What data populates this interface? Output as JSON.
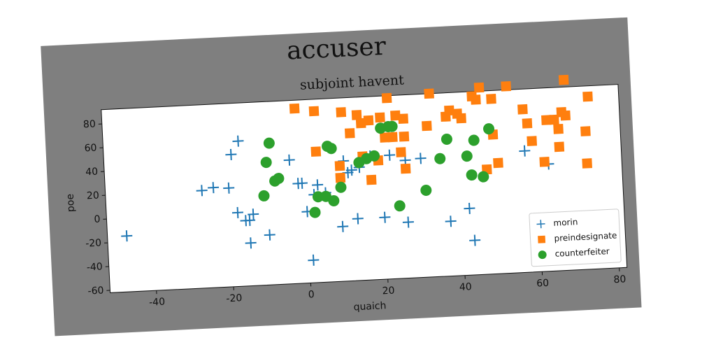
{
  "chart_data": {
    "type": "scatter",
    "title": "accuser",
    "subtitle": "subjoint havent",
    "x_label": "quaich",
    "y_label": "poe",
    "xlim": [
      -52,
      82
    ],
    "ylim": [
      -62,
      92
    ],
    "xticks": [
      -40,
      -20,
      0,
      20,
      40,
      60,
      80
    ],
    "yticks": [
      -60,
      -40,
      -20,
      0,
      20,
      40,
      60,
      80
    ],
    "legend": "lower right",
    "series": [
      {
        "name": "morin",
        "color": "#1f77b4",
        "marker": "plus",
        "x": [
          -47,
          -27,
          -24,
          -20,
          -19,
          -17,
          -18,
          -16,
          -15,
          -14,
          -15,
          -10,
          -4,
          -2,
          -1,
          0,
          1,
          2,
          3,
          5,
          9,
          10,
          11,
          12,
          13,
          14,
          17,
          20,
          22,
          26,
          26,
          30,
          37,
          42,
          43,
          57,
          63
        ],
        "values": [
          -15,
          20,
          22,
          21,
          49,
          60,
          0,
          -7,
          -7,
          -2,
          -26,
          -20,
          42,
          22,
          22,
          -2,
          -43,
          12,
          20,
          13,
          -16,
          39,
          29,
          31,
          -10,
          33,
          42,
          -10,
          42,
          37,
          -15,
          38,
          -16,
          -6,
          -33,
          40,
          28
        ]
      },
      {
        "name": "preindesignate",
        "color": "#ff7f0e",
        "marker": "square",
        "x": [
          -2,
          3,
          10,
          12,
          14,
          15,
          17,
          20,
          22,
          24,
          23,
          26,
          26,
          32,
          33,
          37,
          38,
          40,
          41,
          44,
          45,
          46,
          49,
          53,
          57,
          58,
          59,
          62,
          63,
          65,
          66,
          66,
          67,
          68,
          68,
          74,
          73,
          73,
          49,
          50,
          47,
          26,
          25,
          19,
          17,
          15,
          9,
          9,
          3,
          21
        ],
        "values": [
          85,
          82,
          80,
          62,
          77,
          70,
          72,
          74,
          90,
          75,
          57,
          57,
          72,
          65,
          92,
          72,
          77,
          74,
          70,
          88,
          85,
          95,
          85,
          95,
          75,
          63,
          48,
          30,
          65,
          65,
          57,
          42,
          71,
          68,
          98,
          83,
          54,
          27,
          55,
          31,
          26,
          30,
          44,
          38,
          22,
          42,
          35,
          25,
          48,
          57
        ]
      },
      {
        "name": "counterfeiter",
        "color": "#2ca02c",
        "marker": "circle",
        "x": [
          -9,
          -10,
          -8,
          -7,
          -11,
          2,
          3,
          5,
          7,
          9,
          6,
          7,
          14,
          16,
          18,
          20,
          22,
          23,
          24,
          31,
          35,
          37,
          42,
          43,
          44,
          46,
          48
        ],
        "values": [
          57,
          41,
          25,
          27,
          13,
          -3,
          10,
          10,
          6,
          17,
          52,
          50,
          37,
          40,
          42,
          65,
          66,
          66,
          -1,
          11,
          37,
          53,
          38,
          22,
          51,
          20,
          60
        ]
      }
    ]
  }
}
